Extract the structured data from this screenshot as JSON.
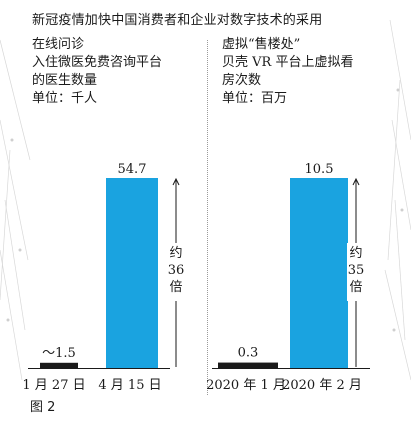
{
  "title": "新冠疫情加快中国消费者和企业对数字技术的采用",
  "figure_label": "图 2",
  "panels": [
    {
      "heading": [
        "在线问诊",
        "入住微医免费咨询平台",
        "的医生数量"
      ],
      "unit": "单位：千人",
      "fold_label": [
        "约",
        "36",
        "倍"
      ]
    },
    {
      "heading": [
        "虚拟“售楼处”",
        "贝壳 VR 平台上虚拟看",
        "房次数"
      ],
      "unit": "单位：百万",
      "fold_label": [
        "约",
        "35",
        "倍"
      ]
    }
  ],
  "colors": {
    "accent": "#1aa3e0",
    "small_bar": "#1a1a1a",
    "line": "#1a1a1a"
  },
  "chart_data": [
    {
      "type": "bar",
      "categories": [
        "1 月 27 日",
        "4 月 15 日"
      ],
      "values": [
        1.5,
        54.7
      ],
      "value_labels": [
        "～1.5",
        "54.7"
      ],
      "ylim": [
        0,
        54.7
      ]
    },
    {
      "type": "bar",
      "categories": [
        "2020 年 1 月",
        "2020 年 2 月"
      ],
      "values": [
        0.3,
        10.5
      ],
      "value_labels": [
        "0.3",
        "10.5"
      ],
      "ylim": [
        0,
        10.5
      ]
    }
  ]
}
